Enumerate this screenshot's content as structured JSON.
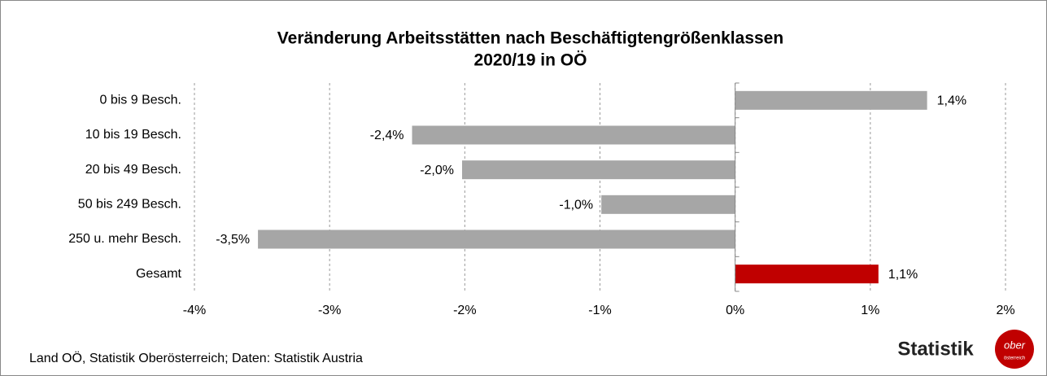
{
  "chart_data": {
    "type": "barh",
    "title": [
      "Veränderung Arbeitsstätten nach Beschäftigtengrößenklassen",
      "2020/19 in OÖ"
    ],
    "categories": [
      "0 bis 9 Besch.",
      "10 bis 19 Besch.",
      "20 bis 49 Besch.",
      "50 bis 249 Besch.",
      "250 u. mehr Besch.",
      "Gesamt"
    ],
    "values": [
      1.42,
      -2.39,
      -2.02,
      -0.99,
      -3.53,
      1.06
    ],
    "value_labels": [
      "1,4%",
      "-2,4%",
      "-2,0%",
      "-1,0%",
      "-3,5%",
      "1,1%"
    ],
    "colors": [
      "#a6a6a6",
      "#a6a6a6",
      "#a6a6a6",
      "#a6a6a6",
      "#a6a6a6",
      "#c00000"
    ],
    "xlim": [
      -4,
      2
    ],
    "xticks": [
      {
        "value": -4,
        "label": "-4%"
      },
      {
        "value": -3,
        "label": "-3%"
      },
      {
        "value": -2,
        "label": "-2%"
      },
      {
        "value": -1,
        "label": "-1%"
      },
      {
        "value": 0,
        "label": "0%"
      },
      {
        "value": 1,
        "label": "1%"
      },
      {
        "value": 2,
        "label": "2%"
      }
    ],
    "grid": true,
    "source": "Land OÖ, Statistik Oberösterreich; Daten: Statistik Austria",
    "logo": {
      "text": "Statistik",
      "badge": [
        "ober",
        "österreich"
      ]
    }
  }
}
